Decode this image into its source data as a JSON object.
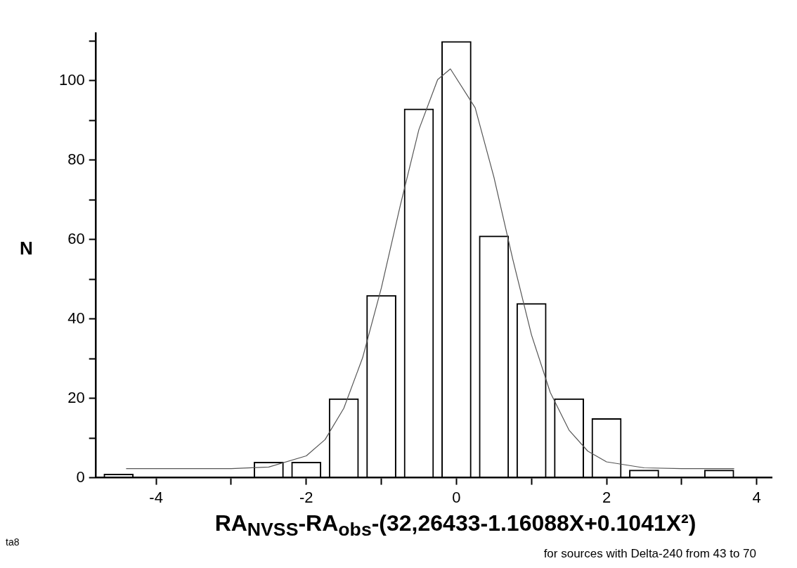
{
  "chart_data": {
    "type": "bar",
    "xlabel": "RA$_{NVSS}$-RA$_{obs}$-(32,26433-1.16088X+0.1041X²)",
    "ylabel": "N",
    "x": [
      -4.5,
      -2.5,
      -2.0,
      -1.5,
      -1.0,
      -0.5,
      0,
      0.5,
      1.0,
      1.5,
      2.0,
      2.5,
      3.5
    ],
    "values": [
      1,
      4,
      4,
      20,
      46,
      93,
      110,
      61,
      44,
      20,
      15,
      2,
      2
    ],
    "color": "#000000",
    "series": [
      {
        "type": "line",
        "color": "#555555",
        "x": [
          -4.4,
          -3.0,
          -2.5,
          -2.0,
          -1.75,
          -1.5,
          -1.25,
          -1.0,
          -0.75,
          -0.5,
          -0.25,
          -0.08,
          0.25,
          0.5,
          0.75,
          1.0,
          1.25,
          1.5,
          1.75,
          2.0,
          2.5,
          3.0,
          3.7
        ],
        "values": [
          2.3,
          2.3,
          2.7,
          5.5,
          9.6,
          17.5,
          30.2,
          47.8,
          68.4,
          87.7,
          100.3,
          103,
          93.2,
          75.7,
          55.1,
          36,
          21.5,
          12,
          6.7,
          4,
          2.5,
          2.3,
          2.3
        ]
      }
    ],
    "xlim": [
      -4.8,
      4.2
    ],
    "xticks": [
      -4,
      {
        "value": -3,
        "label": null
      },
      -2,
      {
        "value": -1,
        "label": null
      },
      0,
      {
        "value": 1,
        "label": null
      },
      2,
      {
        "value": 3,
        "label": null
      },
      4
    ],
    "ylim": [
      0,
      112
    ],
    "yticks": [
      0,
      {
        "value": 10,
        "label": null
      },
      20,
      {
        "value": 30,
        "label": null
      },
      40,
      {
        "value": 50,
        "label": null
      },
      60,
      {
        "value": 70,
        "label": null
      },
      80,
      {
        "value": 90,
        "label": null
      },
      100,
      {
        "value": 110,
        "label": null
      }
    ],
    "grid": false,
    "legend": false,
    "annotations": [
      "for sources with Delta-240 from 43 to 70",
      "ta8"
    ]
  }
}
